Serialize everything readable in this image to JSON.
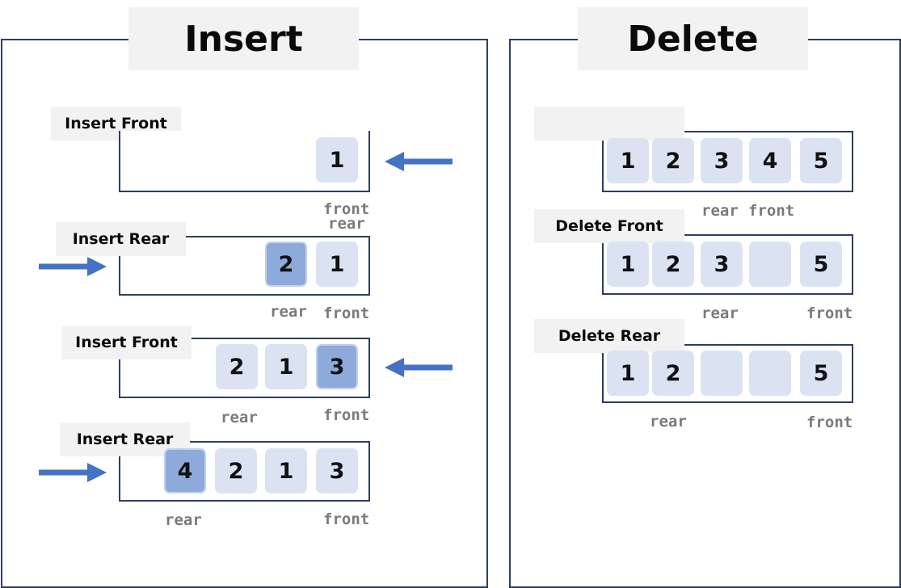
{
  "insert": {
    "title": "Insert",
    "steps": [
      {
        "label": "Insert Front",
        "cells": [
          "1"
        ],
        "front_label": "front",
        "rear_label": "rear"
      },
      {
        "label": "Insert Rear",
        "cells": [
          "2",
          "1"
        ],
        "front_label": "front",
        "rear_label": "rear"
      },
      {
        "label": "Insert Front",
        "cells": [
          "2",
          "1",
          "3"
        ],
        "front_label": "front",
        "rear_label": "rear"
      },
      {
        "label": "Insert Rear",
        "cells": [
          "4",
          "2",
          "1",
          "3"
        ],
        "front_label": "front",
        "rear_label": "rear"
      }
    ]
  },
  "delete": {
    "title": "Delete",
    "steps": [
      {
        "label": "",
        "cells": [
          "1",
          "2",
          "3",
          "4",
          "5"
        ],
        "front_label": "front",
        "rear_label": "rear"
      },
      {
        "label": "Delete Front",
        "cells": [
          "1",
          "2",
          "3",
          "",
          "5"
        ],
        "front_label": "front",
        "rear_label": "rear"
      },
      {
        "label": "Delete Rear",
        "cells": [
          "1",
          "2",
          "",
          "",
          "5"
        ],
        "front_label": "front",
        "rear_label": "rear"
      }
    ]
  },
  "colors": {
    "border": "#2f3e5c",
    "cell": "#dbe3f3",
    "cell_highlight": "#8eaadb",
    "arrow": "#4472c4",
    "pointer_text": "#7a7a7a"
  }
}
